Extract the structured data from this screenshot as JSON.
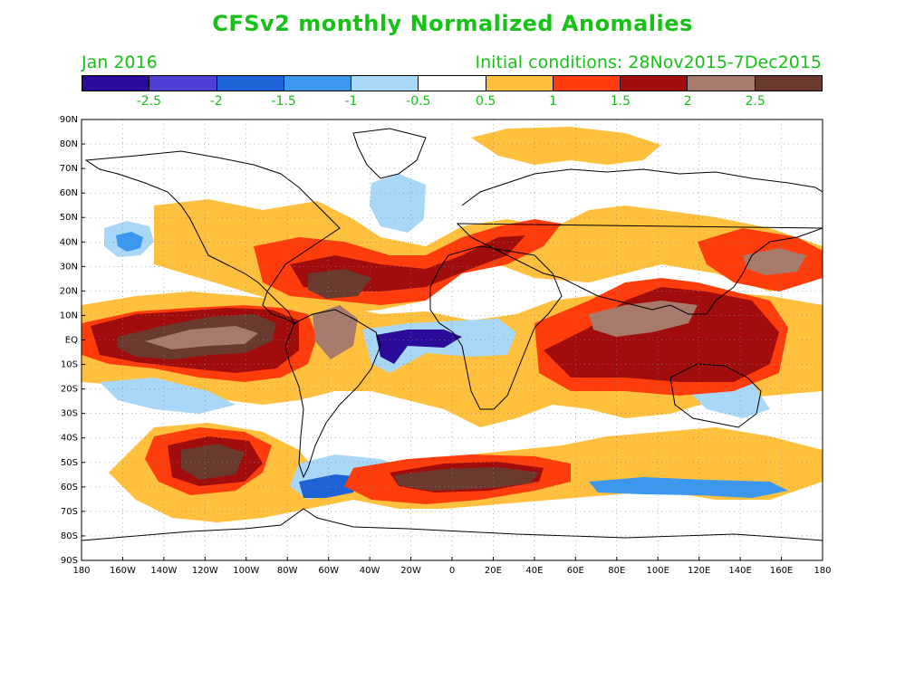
{
  "title": "CFSv2 monthly Normalized Anomalies",
  "valid_month": "Jan 2016",
  "initial_conditions": "Initial conditions: 28Nov2015-7Dec2015",
  "text_color": "#17c117",
  "colorbar": {
    "colors": [
      "#2b0b9a",
      "#4f3fd6",
      "#1e63d6",
      "#3c97ee",
      "#a8d7f8",
      "#ffffff",
      "#ffc03d",
      "#ff3d0c",
      "#a10d0d",
      "#a87a6c",
      "#6b3a2e"
    ],
    "labels": [
      "-2.5",
      "-2",
      "-1.5",
      "-1",
      "-0.5",
      "0.5",
      "1",
      "1.5",
      "2",
      "2.5"
    ]
  },
  "map": {
    "lat_labels": [
      "90N",
      "80N",
      "70N",
      "60N",
      "50N",
      "40N",
      "30N",
      "20N",
      "10N",
      "EQ",
      "10S",
      "20S",
      "30S",
      "40S",
      "50S",
      "60S",
      "70S",
      "80S",
      "90S"
    ],
    "lon_labels": [
      "180",
      "160W",
      "140W",
      "120W",
      "100W",
      "80W",
      "60W",
      "40W",
      "20W",
      "0",
      "20E",
      "40E",
      "60E",
      "80E",
      "100E",
      "120E",
      "140E",
      "160E",
      "180"
    ]
  }
}
